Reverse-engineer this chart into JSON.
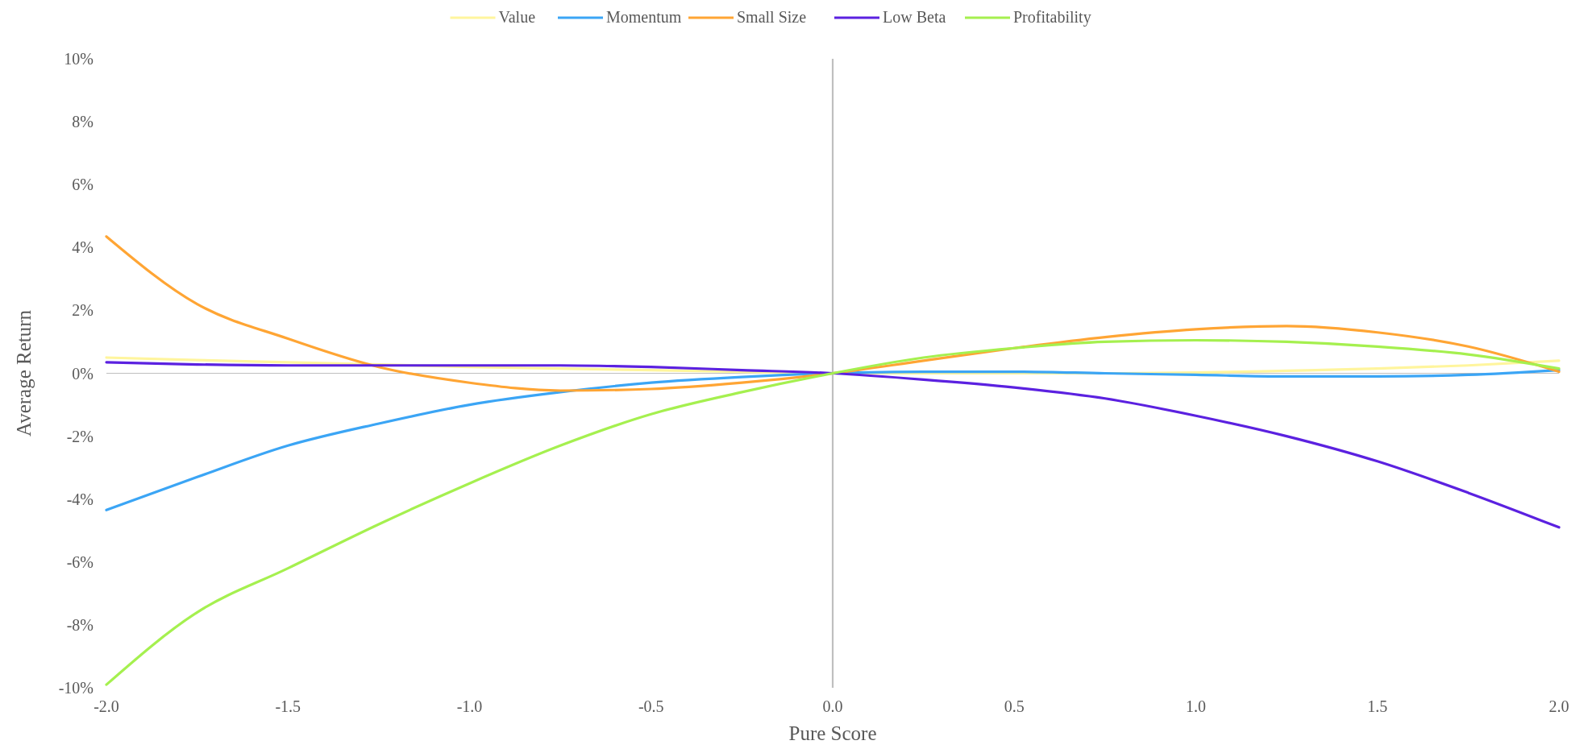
{
  "chart_data": {
    "type": "line",
    "xlabel": "Pure Score",
    "ylabel": "Average Return",
    "x": [
      -2,
      -1.75,
      -1.5,
      -1.25,
      -1,
      -0.75,
      -0.5,
      -0.25,
      0,
      0.25,
      0.5,
      0.75,
      1,
      1.25,
      1.5,
      1.75,
      2
    ],
    "series": [
      {
        "name": "Value",
        "color": "#fff59d",
        "values": [
          0.5,
          0.42,
          0.35,
          0.28,
          0.2,
          0.15,
          0.1,
          0.05,
          0,
          0,
          0,
          0,
          0.02,
          0.08,
          0.15,
          0.25,
          0.4
        ]
      },
      {
        "name": "Momentum",
        "color": "#3ba5f5",
        "values": [
          -4.35,
          -3.3,
          -2.3,
          -1.6,
          -1.0,
          -0.6,
          -0.3,
          -0.12,
          0,
          0.05,
          0.05,
          0,
          -0.05,
          -0.1,
          -0.1,
          -0.05,
          0.1
        ]
      },
      {
        "name": "Small Size",
        "color": "#ffa534",
        "values": [
          4.35,
          2.2,
          1.1,
          0.2,
          -0.3,
          -0.55,
          -0.5,
          -0.3,
          0,
          0.4,
          0.8,
          1.15,
          1.4,
          1.5,
          1.3,
          0.85,
          0.05
        ]
      },
      {
        "name": "Low Beta",
        "color": "#5b21e0",
        "values": [
          0.35,
          0.28,
          0.25,
          0.25,
          0.25,
          0.25,
          0.2,
          0.1,
          0,
          -0.2,
          -0.45,
          -0.8,
          -1.35,
          -2.0,
          -2.8,
          -3.8,
          -4.9
        ]
      },
      {
        "name": "Profitability",
        "color": "#a5f04f",
        "values": [
          -9.9,
          -7.6,
          -6.2,
          -4.8,
          -3.5,
          -2.3,
          -1.3,
          -0.6,
          0,
          0.5,
          0.8,
          1.0,
          1.05,
          1.0,
          0.85,
          0.6,
          0.15
        ]
      }
    ],
    "xlim": [
      -2,
      2
    ],
    "xticks": [
      {
        "value": -2,
        "label": "-2.0"
      },
      {
        "value": -1.5,
        "label": "-1.5"
      },
      {
        "value": -1,
        "label": "-1.0"
      },
      {
        "value": -0.5,
        "label": "-0.5"
      },
      {
        "value": 0,
        "label": "0.0"
      },
      {
        "value": 0.5,
        "label": "0.5"
      },
      {
        "value": 1,
        "label": "1.0"
      },
      {
        "value": 1.5,
        "label": "1.5"
      },
      {
        "value": 2,
        "label": "2.0"
      }
    ],
    "ylim": [
      -10,
      10
    ],
    "yticks": [
      {
        "value": -10,
        "label": "-10%"
      },
      {
        "value": -8,
        "label": "-8%"
      },
      {
        "value": -6,
        "label": "-6%"
      },
      {
        "value": -4,
        "label": "-4%"
      },
      {
        "value": -2,
        "label": "-2%"
      },
      {
        "value": 0,
        "label": "0%"
      },
      {
        "value": 2,
        "label": "2%"
      },
      {
        "value": 4,
        "label": "4%"
      },
      {
        "value": 6,
        "label": "6%"
      },
      {
        "value": 8,
        "label": "8%"
      },
      {
        "value": 10,
        "label": "10%"
      }
    ],
    "legend": "top",
    "grid": false,
    "marker": "none",
    "line_style": "solid"
  }
}
